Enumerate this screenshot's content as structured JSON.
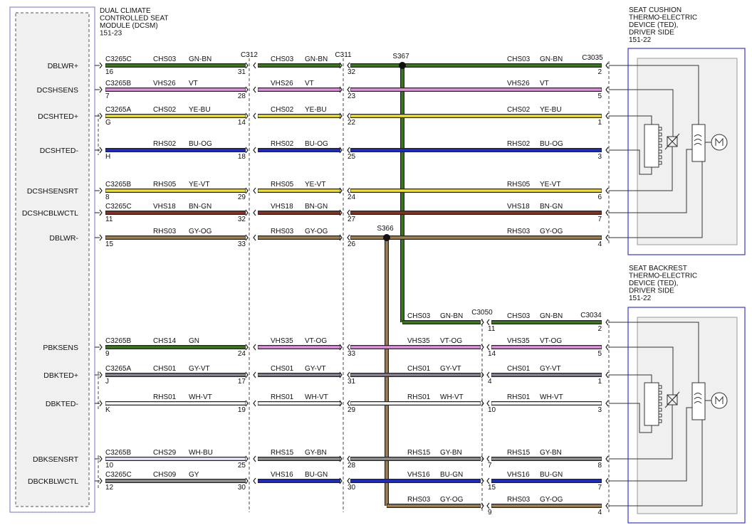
{
  "module": {
    "title": [
      "DUAL CLIMATE",
      "CONTROLLED SEAT",
      "MODULE (DCSM)",
      "151-23"
    ]
  },
  "devices": [
    {
      "title": [
        "SEAT CUSHION",
        "THERMO-ELECTRIC",
        "DEVICE (TED),",
        "DRIVER SIDE",
        "151-22"
      ]
    },
    {
      "title": [
        "SEAT BACKREST",
        "THERMO-ELECTRIC",
        "DEVICE (TED),",
        "DRIVER SIDE",
        "151-22"
      ]
    }
  ],
  "connectors": {
    "c312": "C312",
    "c311": "C311",
    "s367": "S367",
    "c3035": "C3035",
    "s366": "S366",
    "c3050": "C3050",
    "c3034": "C3034"
  },
  "rows": [
    {
      "name": "DBLWR+",
      "connector": "C3265C",
      "pins": [
        "16",
        "31",
        "32",
        "2"
      ],
      "segments": [
        {
          "circuit": "CHS03",
          "color": "GN-BN",
          "stroke": "#3a7a1a"
        },
        {
          "circuit": "CHS03",
          "color": "GN-BN",
          "stroke": "#3a7a1a"
        },
        {
          "circuit": "CHS03",
          "color": "GN-BN",
          "stroke": "#3a7a1a"
        }
      ]
    },
    {
      "name": "DCSHSENS",
      "connector": "C3265B",
      "pins": [
        "7",
        "28",
        "23",
        "5"
      ],
      "segments": [
        {
          "circuit": "VHS26",
          "color": "VT",
          "stroke": "#e58fe0"
        },
        {
          "circuit": "VHS26",
          "color": "VT",
          "stroke": "#e58fe0"
        },
        {
          "circuit": "VHS26",
          "color": "VT",
          "stroke": "#e58fe0"
        }
      ]
    },
    {
      "name": "DCSHTED+",
      "connector": "C3265A",
      "pins": [
        "G",
        "14",
        "22",
        "1"
      ],
      "segments": [
        {
          "circuit": "CHS02",
          "color": "YE-BU",
          "stroke": "#f0e030"
        },
        {
          "circuit": "CHS02",
          "color": "YE-BU",
          "stroke": "#f0e030"
        },
        {
          "circuit": "CHS02",
          "color": "YE-BU",
          "stroke": "#f0e030"
        }
      ]
    },
    {
      "name": "DCSHTED-",
      "pins": [
        "H",
        "18",
        "25",
        "3"
      ],
      "segments": [
        {
          "circuit": "RHS02",
          "color": "BU-OG",
          "stroke": "#1a2ad0"
        },
        {
          "circuit": "RHS02",
          "color": "BU-OG",
          "stroke": "#1a2ad0"
        },
        {
          "circuit": "RHS02",
          "color": "BU-OG",
          "stroke": "#1a2ad0"
        }
      ]
    },
    {
      "name": "DCSHSENSRT",
      "connector": "C3265B",
      "pins": [
        "8",
        "29",
        "24",
        "6"
      ],
      "segments": [
        {
          "circuit": "RHS05",
          "color": "YE-VT",
          "stroke": "#f0e030"
        },
        {
          "circuit": "RHS05",
          "color": "YE-VT",
          "stroke": "#f0e030"
        },
        {
          "circuit": "RHS05",
          "color": "YE-VT",
          "stroke": "#f0e030"
        }
      ]
    },
    {
      "name": "DCSHCBLWCTL",
      "connector": "C3265C",
      "pins": [
        "11",
        "32",
        "27",
        "7"
      ],
      "segments": [
        {
          "circuit": "VHS18",
          "color": "BN-GN",
          "stroke": "#8b3020"
        },
        {
          "circuit": "VHS18",
          "color": "BN-GN",
          "stroke": "#8b3020"
        },
        {
          "circuit": "VHS18",
          "color": "BN-GN",
          "stroke": "#8b3020"
        }
      ]
    },
    {
      "name": "DBLWR-",
      "pins": [
        "15",
        "33",
        "26",
        "4"
      ],
      "segments": [
        {
          "circuit": "RHS03",
          "color": "GY-OG",
          "stroke": "#a08050"
        },
        {
          "circuit": "RHS03",
          "color": "GY-OG",
          "stroke": "#a08050"
        },
        {
          "circuit": "RHS03",
          "color": "GY-OG",
          "stroke": "#a08050"
        }
      ]
    },
    {
      "name": "PBKSENS",
      "connector": "C3265B",
      "pins": [
        "9",
        "24",
        "33",
        "14",
        "5"
      ],
      "segments": [
        {
          "circuit": "CHS14",
          "color": "GN",
          "stroke": "#3a7a1a"
        },
        {
          "circuit": "VHS35",
          "color": "VT-OG",
          "stroke": "#e58fe0"
        },
        {
          "circuit": "VHS35",
          "color": "VT-OG",
          "stroke": "#e58fe0"
        },
        {
          "circuit": "VHS35",
          "color": "VT-OG",
          "stroke": "#e58fe0"
        }
      ]
    },
    {
      "name": "DBKTED+",
      "connector": "C3265A",
      "pins": [
        "J",
        "17",
        "31",
        "4",
        "1"
      ],
      "segments": [
        {
          "circuit": "CHS01",
          "color": "GY-VT",
          "stroke": "#888090"
        },
        {
          "circuit": "CHS01",
          "color": "GY-VT",
          "stroke": "#888090"
        },
        {
          "circuit": "CHS01",
          "color": "GY-VT",
          "stroke": "#888090"
        },
        {
          "circuit": "CHS01",
          "color": "GY-VT",
          "stroke": "#888090"
        }
      ]
    },
    {
      "name": "DBKTED-",
      "pins": [
        "K",
        "19",
        "29",
        "10",
        "3"
      ],
      "segments": [
        {
          "circuit": "RHS01",
          "color": "WH-VT",
          "stroke": "#ffffff"
        },
        {
          "circuit": "RHS01",
          "color": "WH-VT",
          "stroke": "#ffffff"
        },
        {
          "circuit": "RHS01",
          "color": "WH-VT",
          "stroke": "#ffffff"
        },
        {
          "circuit": "RHS01",
          "color": "WH-VT",
          "stroke": "#ffffff"
        }
      ]
    },
    {
      "name": "DBKSENSRT",
      "connector": "C3265B",
      "pins": [
        "10",
        "25",
        "28",
        "7",
        "8"
      ],
      "segments": [
        {
          "circuit": "CHS29",
          "color": "WH-BU",
          "stroke": "#e8e8ff"
        },
        {
          "circuit": "RHS15",
          "color": "GY-BN",
          "stroke": "#909090"
        },
        {
          "circuit": "RHS15",
          "color": "GY-BN",
          "stroke": "#909090"
        },
        {
          "circuit": "RHS15",
          "color": "GY-BN",
          "stroke": "#909090"
        }
      ]
    },
    {
      "name": "DBCKBLWCTL",
      "connector": "C3265C",
      "pins": [
        "12",
        "30",
        "30",
        "15",
        "7"
      ],
      "segments": [
        {
          "circuit": "CHS09",
          "color": "GY",
          "stroke": "#909090"
        },
        {
          "circuit": "VHS16",
          "color": "BU-GN",
          "stroke": "#1a2ad0"
        },
        {
          "circuit": "VHS16",
          "color": "BU-GN",
          "stroke": "#1a2ad0"
        },
        {
          "circuit": "VHS16",
          "color": "BU-GN",
          "stroke": "#1a2ad0"
        }
      ]
    }
  ],
  "branches": [
    {
      "pins": [
        "11",
        "2"
      ],
      "segments": [
        {
          "circuit": "CHS03",
          "color": "GN-BN",
          "stroke": "#3a7a1a"
        },
        {
          "circuit": "CHS03",
          "color": "GN-BN",
          "stroke": "#3a7a1a"
        }
      ]
    },
    {
      "pins": [
        "9",
        "4"
      ],
      "segments": [
        {
          "circuit": "RHS03",
          "color": "GY-OG",
          "stroke": "#a08050"
        },
        {
          "circuit": "RHS03",
          "color": "GY-OG",
          "stroke": "#a08050"
        }
      ]
    }
  ]
}
